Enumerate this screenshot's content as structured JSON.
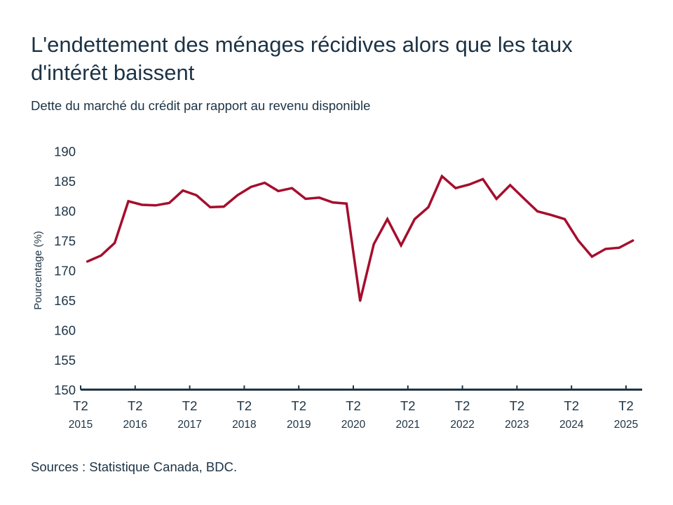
{
  "title": "L'endettement des ménages récidives alors que les taux d'intérêt baissent",
  "subtitle": "Dette du marché du crédit par rapport au revenu disponible",
  "source": "Sources : Statistique Canada, BDC.",
  "colors": {
    "line": "#a50e2d",
    "text": "#1c3345"
  },
  "chart_data": {
    "type": "line",
    "title": "L'endettement des ménages récidives alors que les taux d'intérêt baissent",
    "ylabel": "Pourcentage (%)",
    "xlabel": "",
    "ylim": [
      150,
      190
    ],
    "yticks": [
      "150",
      "155",
      "160",
      "165",
      "170",
      "175",
      "180",
      "185",
      "190"
    ],
    "xticks": [
      {
        "q": "T2",
        "y": "2015"
      },
      {
        "q": "T2",
        "y": "2016"
      },
      {
        "q": "T2",
        "y": "2017"
      },
      {
        "q": "T2",
        "y": "2018"
      },
      {
        "q": "T2",
        "y": "2019"
      },
      {
        "q": "T2",
        "y": "2020"
      },
      {
        "q": "T2",
        "y": "2021"
      },
      {
        "q": "T2",
        "y": "2022"
      },
      {
        "q": "T2",
        "y": "2023"
      },
      {
        "q": "T2",
        "y": "2024"
      },
      {
        "q": "T2",
        "y": "2025"
      }
    ],
    "x_start": "T2 2015",
    "x_end": "T2 2025",
    "frequency": "quarterly",
    "grid": false,
    "series": [
      {
        "name": "Dette / revenu disponible",
        "values": [
          171.5,
          172.5,
          174.6,
          181.6,
          181.0,
          180.9,
          181.3,
          183.4,
          182.6,
          180.6,
          180.7,
          182.6,
          184.0,
          184.7,
          183.3,
          183.8,
          182.0,
          182.2,
          181.4,
          181.2,
          164.9,
          174.4,
          178.6,
          174.2,
          178.6,
          180.6,
          185.8,
          183.8,
          184.4,
          185.3,
          182.0,
          184.3,
          182.1,
          179.9,
          179.3,
          178.6,
          175.0,
          172.3,
          173.6,
          173.8,
          175.0
        ]
      }
    ]
  }
}
